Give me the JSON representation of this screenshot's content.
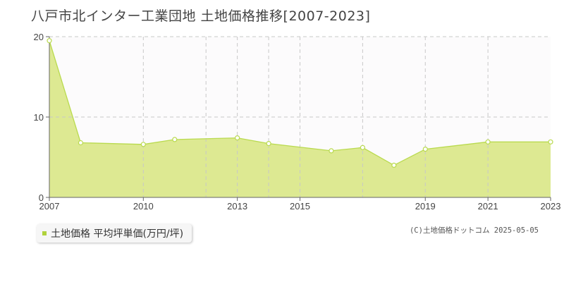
{
  "title": "八戸市北インター工業団地 土地価格推移[2007-2023]",
  "legend": {
    "label": "土地価格 平均坪単価(万円/坪)"
  },
  "copyright": "(C)土地価格ドットコム 2025-05-05",
  "colors": {
    "fill": "#dde992",
    "line": "#b9da4e",
    "marker_fill": "#ffffff",
    "grid": "#c8c8c8",
    "plot_bg": "#fcfbfc",
    "axis": "#666666"
  },
  "chart_data": {
    "type": "area",
    "title": "八戸市北インター工業団地 土地価格推移[2007-2023]",
    "xlabel": "",
    "ylabel": "",
    "xlim": [
      2007,
      2023
    ],
    "ylim": [
      0,
      20
    ],
    "x_tick_labels": [
      "2007",
      "2010",
      "2013",
      "2015",
      "2019",
      "2021",
      "2023"
    ],
    "y_tick_labels": [
      "0",
      "10",
      "20"
    ],
    "y_ticks": [
      0,
      10,
      20
    ],
    "x_gridlines": [
      2010,
      2012,
      2013,
      2014,
      2015,
      2017,
      2019,
      2021
    ],
    "grid": true,
    "legend_position": "bottom-left",
    "series": [
      {
        "name": "土地価格 平均坪単価(万円/坪)",
        "x": [
          2007,
          2008,
          2010,
          2011,
          2013,
          2014,
          2016,
          2017,
          2018,
          2019,
          2021,
          2023
        ],
        "values": [
          19.5,
          6.8,
          6.6,
          7.2,
          7.4,
          6.7,
          5.8,
          6.2,
          4.0,
          6.0,
          6.9,
          6.9
        ]
      }
    ]
  }
}
